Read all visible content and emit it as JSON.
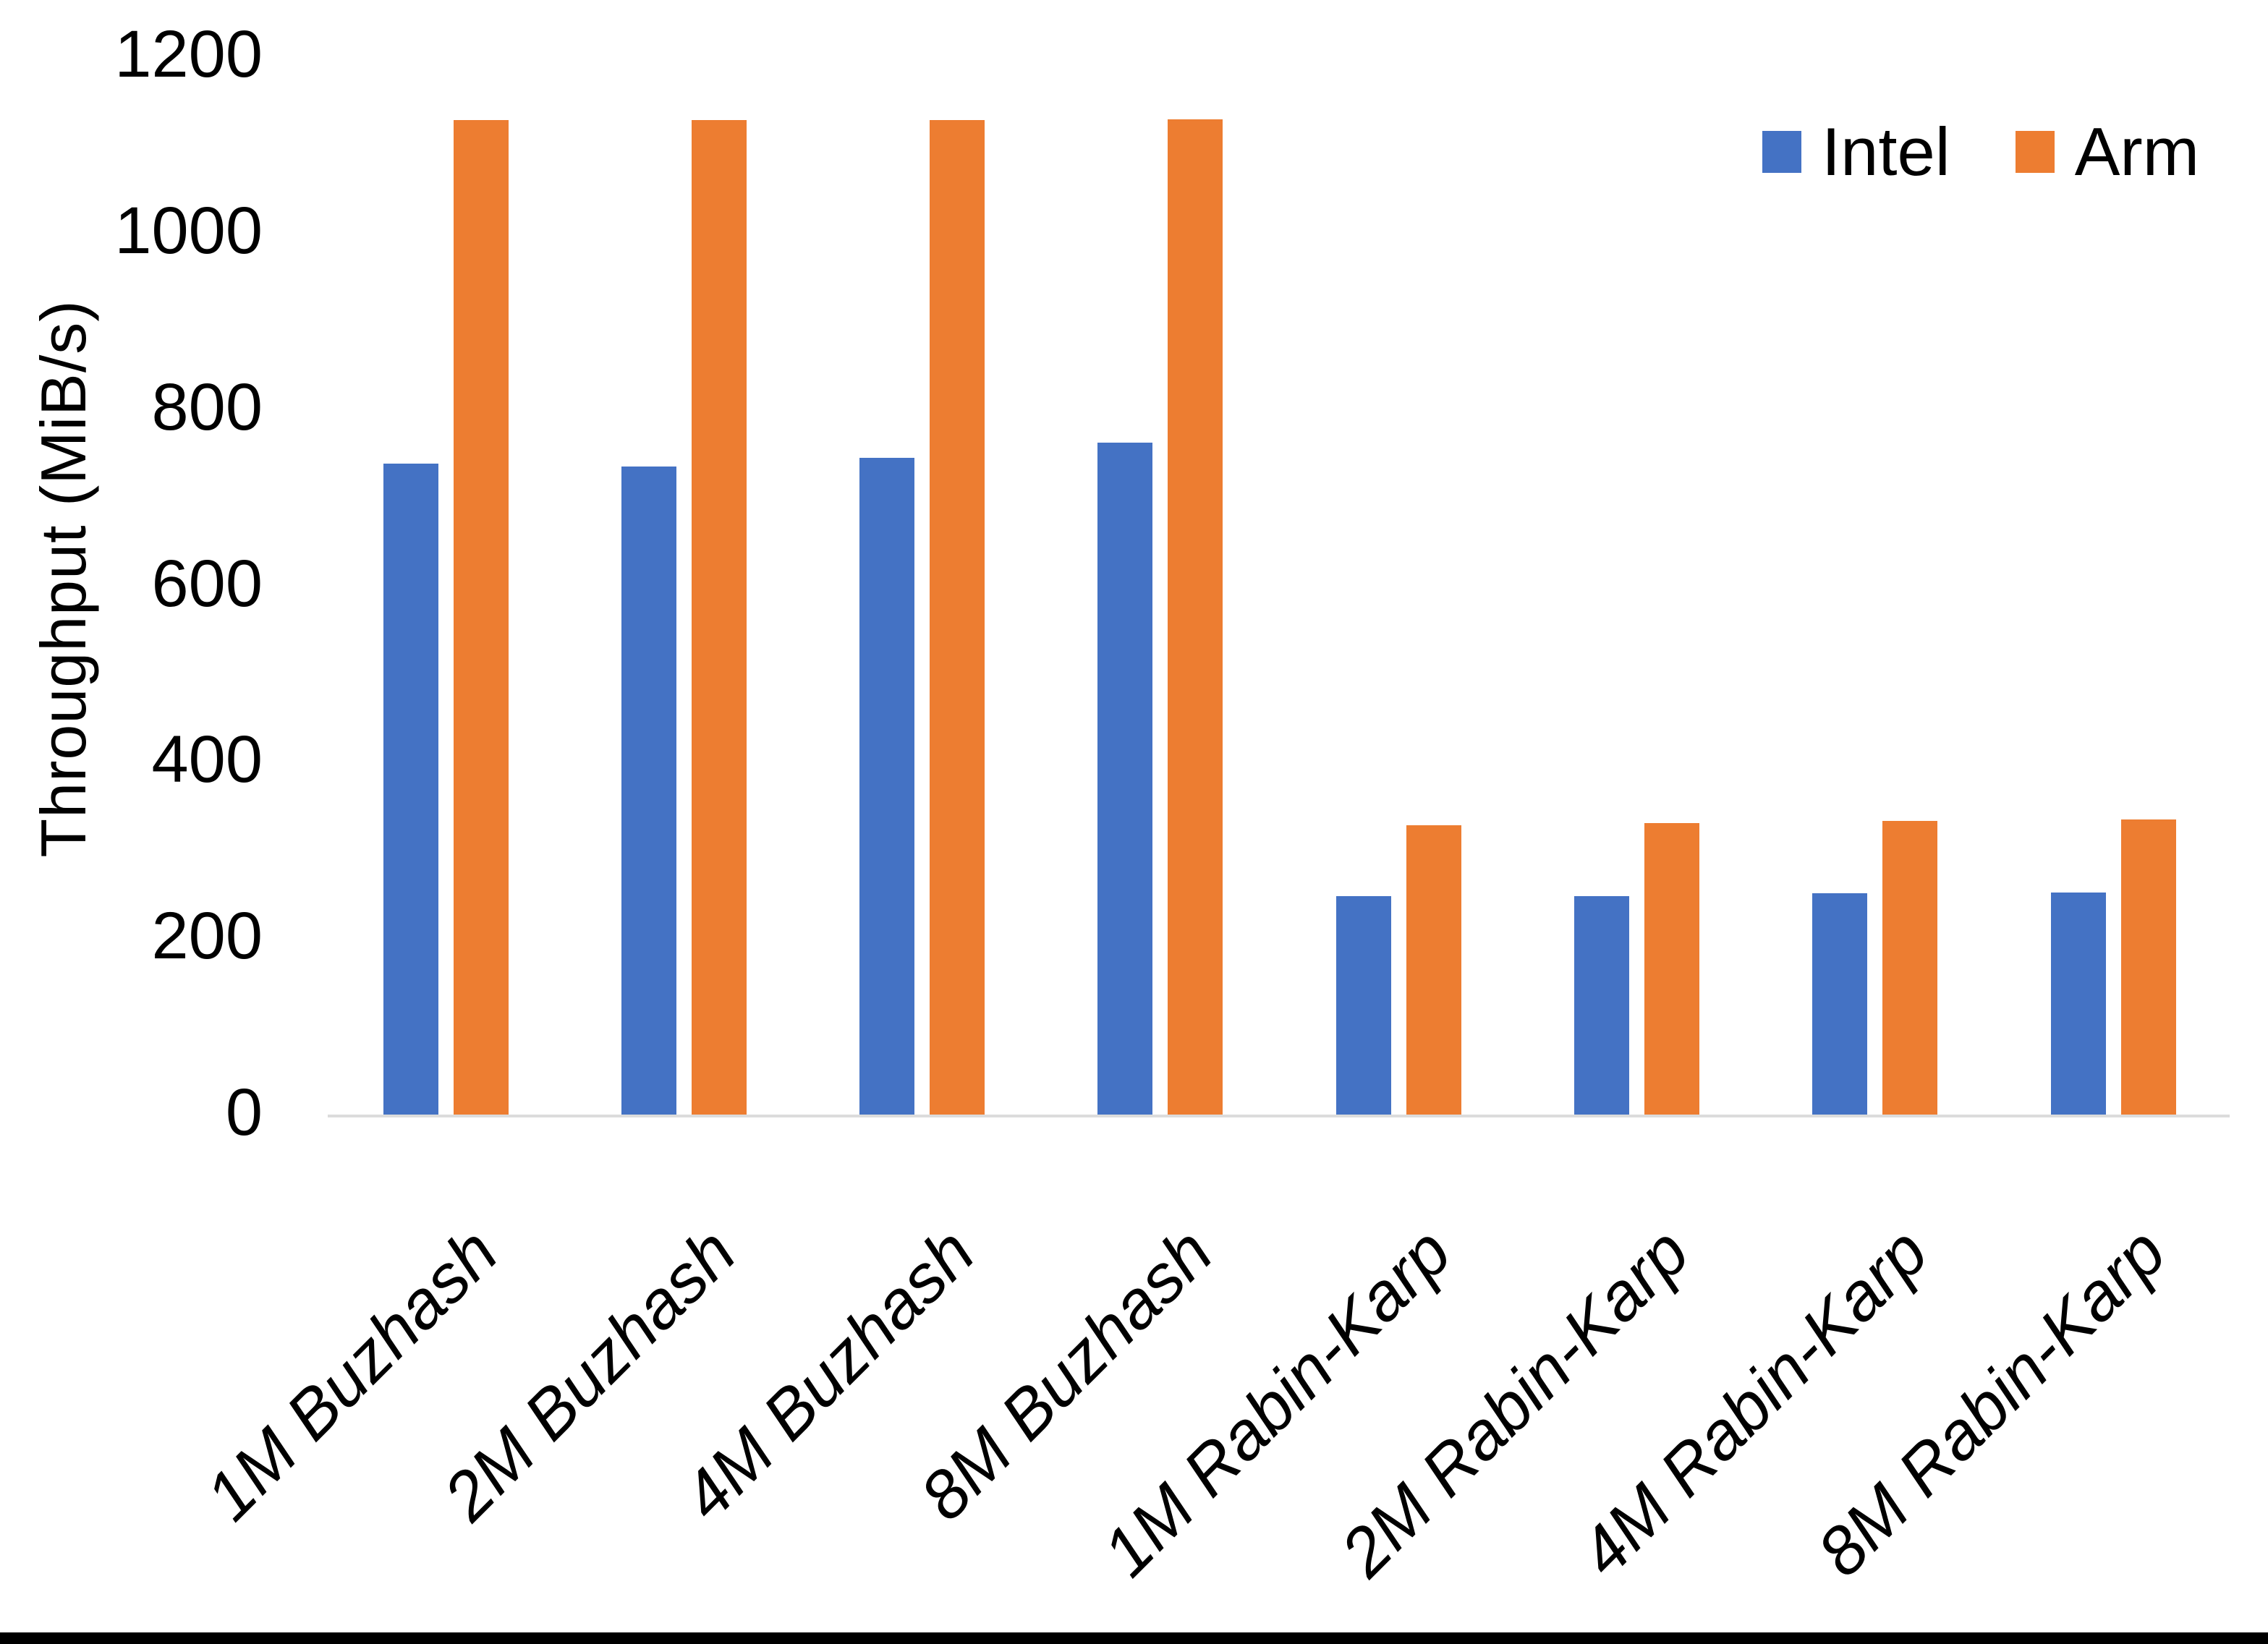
{
  "chart_data": {
    "type": "bar",
    "title": "",
    "xlabel": "",
    "ylabel": "Throughput (MiB/s)",
    "ylim": [
      0,
      1200
    ],
    "yticks": [
      0,
      200,
      400,
      600,
      800,
      1000,
      1200
    ],
    "grid": false,
    "legend_position": "top-right",
    "background_color": "#FFFFFF",
    "axis_line_color": "#DCDCDC",
    "text_color": "#000000",
    "categories": [
      "1M Buzhash",
      "2M Buzhash",
      "4M Buzhash",
      "8M Buzhash",
      "1M Rabin-Karp",
      "2M Rabin-Karp",
      "4M Rabin-Karp",
      "8M Rabin-Karp"
    ],
    "series": [
      {
        "name": "Intel",
        "color": "#4472C4",
        "values": [
          738,
          735,
          745,
          762,
          248,
          248,
          251,
          252
        ]
      },
      {
        "name": "Arm",
        "color": "#ED7D31",
        "values": [
          1128,
          1128,
          1128,
          1129,
          328,
          331,
          333,
          335
        ]
      }
    ]
  }
}
